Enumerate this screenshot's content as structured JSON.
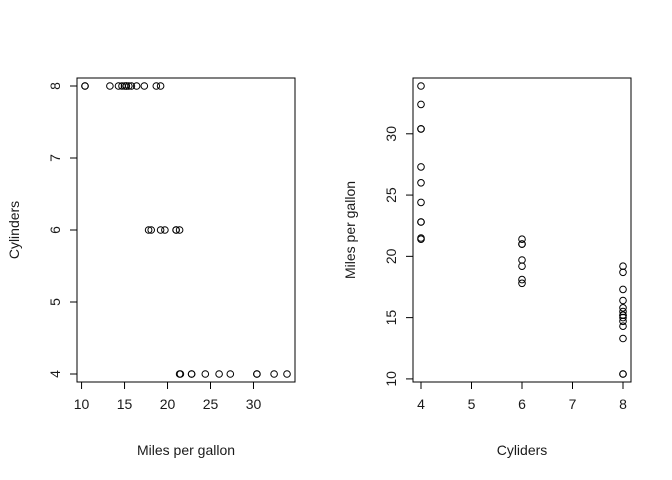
{
  "chart_data": [
    {
      "type": "scatter",
      "title": "",
      "xlabel": "Miles per gallon",
      "ylabel": "Cylinders",
      "xlim": [
        10.4,
        33.9
      ],
      "ylim": [
        4,
        8
      ],
      "xticks": [
        10,
        15,
        20,
        25,
        30
      ],
      "yticks": [
        4,
        5,
        6,
        7,
        8
      ],
      "grid": false,
      "points": [
        [
          21.0,
          6
        ],
        [
          21.0,
          6
        ],
        [
          22.8,
          4
        ],
        [
          21.4,
          6
        ],
        [
          18.7,
          8
        ],
        [
          18.1,
          6
        ],
        [
          14.3,
          8
        ],
        [
          24.4,
          4
        ],
        [
          22.8,
          4
        ],
        [
          19.2,
          6
        ],
        [
          17.8,
          6
        ],
        [
          16.4,
          8
        ],
        [
          17.3,
          8
        ],
        [
          15.2,
          8
        ],
        [
          10.4,
          8
        ],
        [
          10.4,
          8
        ],
        [
          14.7,
          8
        ],
        [
          32.4,
          4
        ],
        [
          30.4,
          4
        ],
        [
          33.9,
          4
        ],
        [
          21.5,
          4
        ],
        [
          15.5,
          8
        ],
        [
          15.2,
          8
        ],
        [
          13.3,
          8
        ],
        [
          19.2,
          8
        ],
        [
          27.3,
          4
        ],
        [
          26.0,
          4
        ],
        [
          30.4,
          4
        ],
        [
          15.8,
          8
        ],
        [
          19.7,
          6
        ],
        [
          15.0,
          8
        ],
        [
          21.4,
          4
        ]
      ]
    },
    {
      "type": "scatter",
      "title": "",
      "xlabel": "Cyliders",
      "ylabel": "Miles per gallon",
      "xlim": [
        4,
        8
      ],
      "ylim": [
        10.4,
        33.9
      ],
      "xticks": [
        4,
        5,
        6,
        7,
        8
      ],
      "yticks": [
        10,
        15,
        20,
        25,
        30
      ],
      "grid": false,
      "points": [
        [
          6,
          21.0
        ],
        [
          6,
          21.0
        ],
        [
          4,
          22.8
        ],
        [
          6,
          21.4
        ],
        [
          8,
          18.7
        ],
        [
          6,
          18.1
        ],
        [
          8,
          14.3
        ],
        [
          4,
          24.4
        ],
        [
          4,
          22.8
        ],
        [
          6,
          19.2
        ],
        [
          6,
          17.8
        ],
        [
          8,
          16.4
        ],
        [
          8,
          17.3
        ],
        [
          8,
          15.2
        ],
        [
          8,
          10.4
        ],
        [
          8,
          10.4
        ],
        [
          8,
          14.7
        ],
        [
          4,
          32.4
        ],
        [
          4,
          30.4
        ],
        [
          4,
          33.9
        ],
        [
          4,
          21.5
        ],
        [
          8,
          15.5
        ],
        [
          8,
          15.2
        ],
        [
          8,
          13.3
        ],
        [
          8,
          19.2
        ],
        [
          4,
          27.3
        ],
        [
          4,
          26.0
        ],
        [
          4,
          30.4
        ],
        [
          8,
          15.8
        ],
        [
          6,
          19.7
        ],
        [
          8,
          15.0
        ],
        [
          4,
          21.4
        ]
      ]
    }
  ]
}
